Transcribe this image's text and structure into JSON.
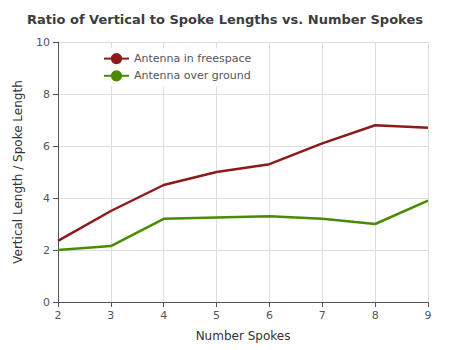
{
  "chart_data": {
    "type": "line",
    "title": "Ratio of Vertical to Spoke Lengths vs. Number Spokes",
    "xlabel": "Number Spokes",
    "ylabel": "Vertical Length / Spoke Length",
    "x": [
      2,
      3,
      4,
      5,
      6,
      7,
      8,
      9
    ],
    "series": [
      {
        "name": "Antenna in freespace",
        "color": "#8B1A1A",
        "values": [
          2.35,
          3.5,
          4.5,
          5.0,
          5.3,
          6.1,
          6.8,
          6.7
        ]
      },
      {
        "name": "Antenna over ground",
        "color": "#4B8B00",
        "values": [
          2.0,
          2.15,
          3.2,
          3.25,
          3.3,
          3.2,
          3.0,
          3.9
        ]
      }
    ],
    "xlim": [
      2,
      9
    ],
    "ylim": [
      0,
      10
    ],
    "xticks": [
      2,
      3,
      4,
      5,
      6,
      7,
      8,
      9
    ],
    "yticks": [
      0,
      2,
      4,
      6,
      8,
      10
    ],
    "grid": true,
    "legend": "upper left"
  }
}
